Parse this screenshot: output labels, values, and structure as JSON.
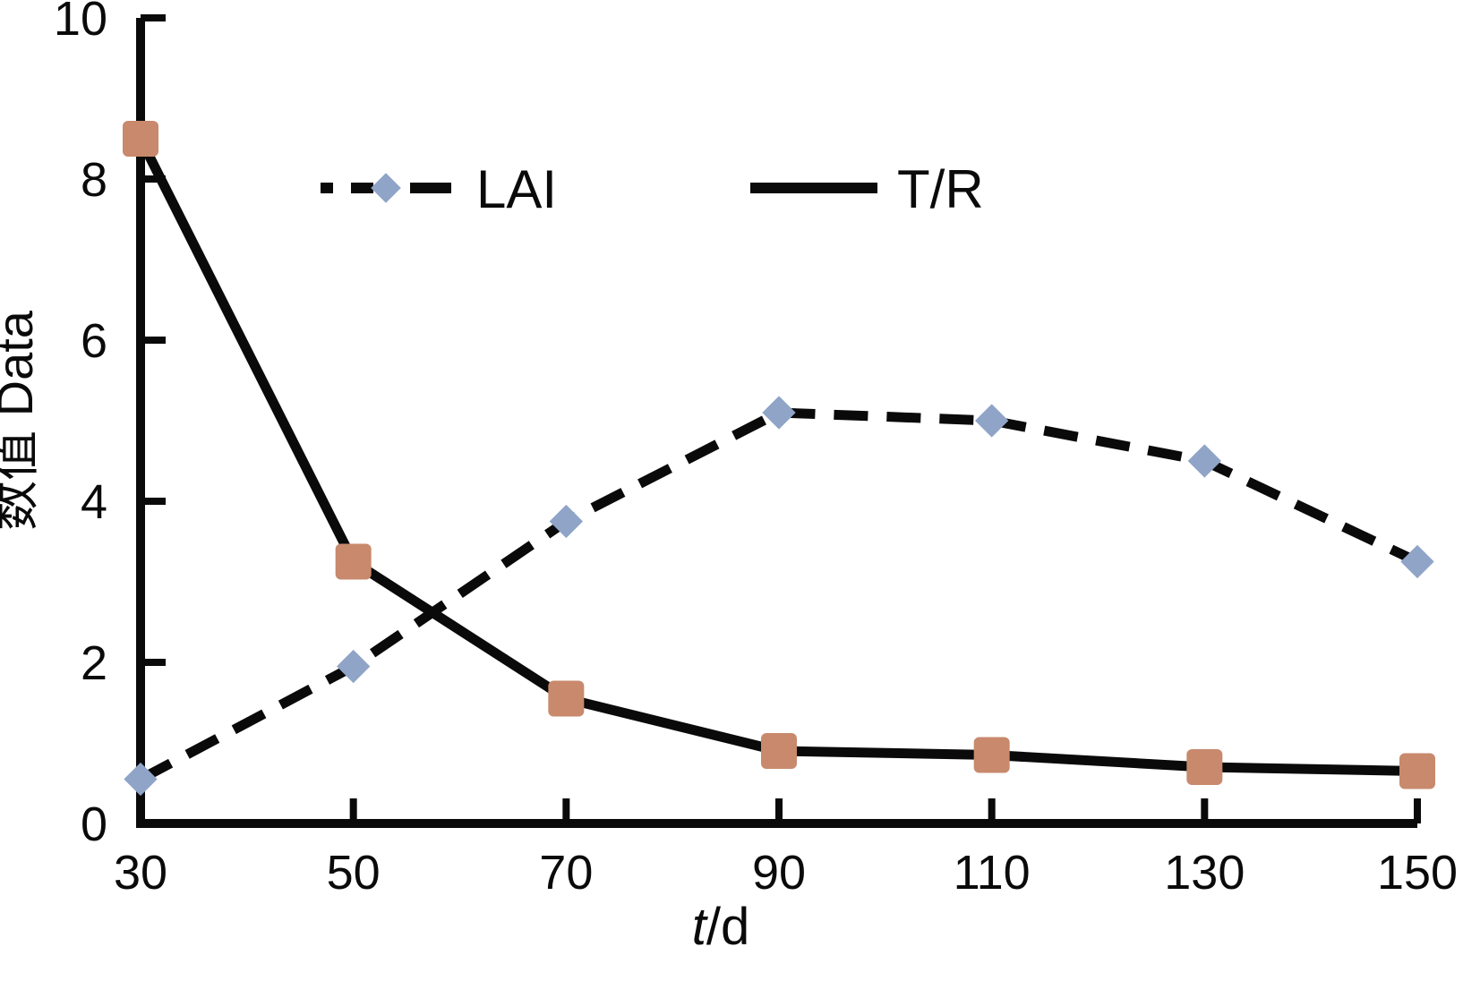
{
  "chart_data": {
    "type": "line",
    "x": [
      30,
      50,
      70,
      90,
      110,
      130,
      150
    ],
    "series": [
      {
        "name": "LAI",
        "values": [
          0.55,
          1.95,
          3.75,
          5.1,
          5.0,
          4.5,
          3.25
        ],
        "line_style": "dashed",
        "line_color": "#0a0a0a",
        "marker": "diamond",
        "marker_color": "#8fa4c7"
      },
      {
        "name": "T/R",
        "values": [
          8.5,
          3.25,
          1.55,
          0.9,
          0.85,
          0.7,
          0.65
        ],
        "line_style": "solid",
        "line_color": "#0a0a0a",
        "marker": "square",
        "marker_color": "#c8896d"
      }
    ],
    "title": "",
    "ylabel": "数值 Data",
    "xlabel": {
      "italic_part": "t",
      "regular_part": "/d"
    },
    "xlim": [
      30,
      150
    ],
    "ylim": [
      0,
      10
    ],
    "x_ticks": [
      "30",
      "50",
      "70",
      "90",
      "110",
      "130",
      "150"
    ],
    "x_tick_values": [
      30,
      50,
      70,
      90,
      110,
      130,
      150
    ],
    "y_ticks": [
      "0",
      "2",
      "4",
      "6",
      "8",
      "10"
    ],
    "y_tick_values": [
      0,
      2,
      4,
      6,
      8,
      10
    ],
    "grid": false,
    "legend_position": "top-center",
    "axis_color": "#0a0a0a",
    "background_color": "#ffffff"
  }
}
